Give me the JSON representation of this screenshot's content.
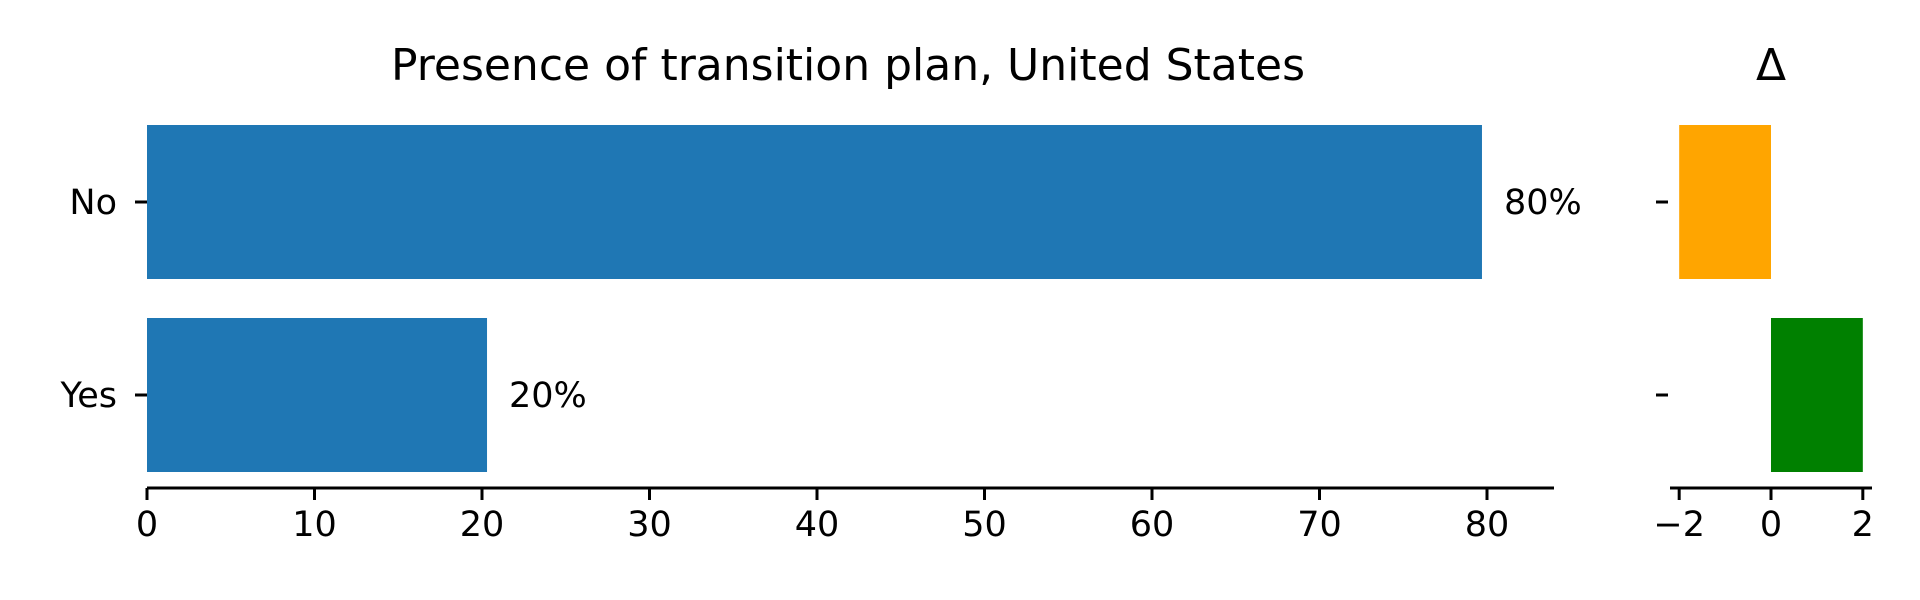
{
  "chart_data": [
    {
      "type": "bar",
      "orientation": "horizontal",
      "title": "Presence of transition plan, United States",
      "categories": [
        "No",
        "Yes"
      ],
      "values": [
        79.7,
        20.3
      ],
      "value_labels": [
        "80%",
        "20%"
      ],
      "xlim": [
        0,
        84
      ],
      "xticks": [
        0,
        10,
        20,
        30,
        40,
        50,
        60,
        70,
        80
      ],
      "xtick_labels": [
        "0",
        "10",
        "20",
        "30",
        "40",
        "50",
        "60",
        "70",
        "80"
      ],
      "bar_color": "#1f77b4",
      "grid": false
    },
    {
      "type": "bar",
      "orientation": "horizontal",
      "title": "Δ",
      "categories": [
        "No",
        "Yes"
      ],
      "values": [
        -2,
        2
      ],
      "bar_colors": [
        "#FFA500",
        "#008000"
      ],
      "xlim": [
        -2.2,
        2.2
      ],
      "xticks": [
        -2,
        0,
        2
      ],
      "xtick_labels": [
        "−2",
        "0",
        "2"
      ],
      "grid": false
    }
  ]
}
